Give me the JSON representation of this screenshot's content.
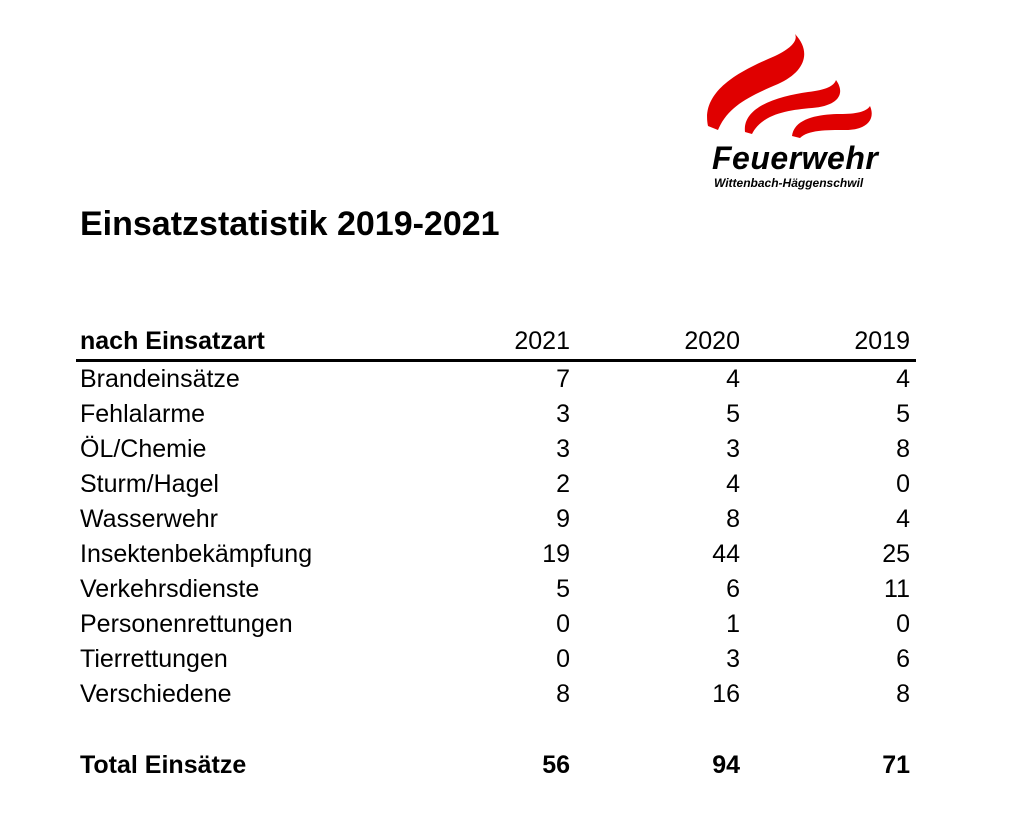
{
  "logo": {
    "name": "Feuerwehr",
    "subtitle": "Wittenbach-Häggenschwil",
    "flame_color": "#e00000"
  },
  "title": "Einsatzstatistik 2019-2021",
  "table": {
    "header_label": "nach Einsatzart",
    "years": [
      "2021",
      "2020",
      "2019"
    ],
    "rows": [
      {
        "label": "Brandeinsätze",
        "values": [
          "7",
          "4",
          "4"
        ]
      },
      {
        "label": "Fehlalarme",
        "values": [
          "3",
          "5",
          "5"
        ]
      },
      {
        "label": "ÖL/Chemie",
        "values": [
          "3",
          "3",
          "8"
        ]
      },
      {
        "label": "Sturm/Hagel",
        "values": [
          "2",
          "4",
          "0"
        ]
      },
      {
        "label": "Wasserwehr",
        "values": [
          "9",
          "8",
          "4"
        ]
      },
      {
        "label": "Insektenbekämpfung",
        "values": [
          "19",
          "44",
          "25"
        ]
      },
      {
        "label": "Verkehrsdienste",
        "values": [
          "5",
          "6",
          "11"
        ]
      },
      {
        "label": "Personenrettungen",
        "values": [
          "0",
          "1",
          "0"
        ]
      },
      {
        "label": "Tierrettungen",
        "values": [
          "0",
          "3",
          "6"
        ]
      },
      {
        "label": "Verschiedene",
        "values": [
          "8",
          "16",
          "8"
        ]
      }
    ],
    "total": {
      "label": "Total Einsätze",
      "values": [
        "56",
        "94",
        "71"
      ]
    }
  }
}
